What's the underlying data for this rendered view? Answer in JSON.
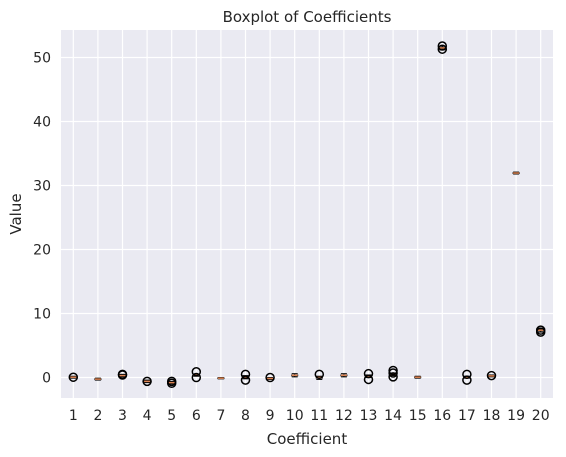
{
  "chart_data": {
    "type": "boxplot",
    "title": "Boxplot of Coefficients",
    "xlabel": "Coefficient",
    "ylabel": "Value",
    "categories": [
      "1",
      "2",
      "3",
      "4",
      "5",
      "6",
      "7",
      "8",
      "9",
      "10",
      "11",
      "12",
      "13",
      "14",
      "15",
      "16",
      "17",
      "18",
      "19",
      "20"
    ],
    "ylim": [
      -3.2,
      54.3
    ],
    "yticks": [
      0,
      10,
      20,
      30,
      40,
      50
    ],
    "grid": true,
    "background_color": "#eaeaf2",
    "grid_color": "#ffffff",
    "median_color": "#dd8452",
    "box_color": "#000000",
    "series": [
      {
        "q1": 0.0,
        "median": 0.05,
        "q3": 0.1,
        "whisker_low": -0.1,
        "whisker_high": 0.2,
        "outliers": [
          0.05
        ]
      },
      {
        "q1": -0.3,
        "median": -0.25,
        "q3": -0.2,
        "whisker_low": -0.4,
        "whisker_high": -0.1,
        "outliers": []
      },
      {
        "q1": 0.2,
        "median": 0.3,
        "q3": 0.4,
        "whisker_low": 0.1,
        "whisker_high": 0.5,
        "outliers": [
          0.5,
          0.4
        ]
      },
      {
        "q1": -0.7,
        "median": -0.6,
        "q3": -0.5,
        "whisker_low": -0.8,
        "whisker_high": -0.4,
        "outliers": [
          -0.6
        ]
      },
      {
        "q1": -0.9,
        "median": -0.8,
        "q3": -0.7,
        "whisker_low": -1.0,
        "whisker_high": -0.6,
        "outliers": [
          -0.9,
          -0.6
        ]
      },
      {
        "q1": 0.3,
        "median": 0.35,
        "q3": 0.4,
        "whisker_low": 0.2,
        "whisker_high": 0.5,
        "outliers": [
          0.9,
          0.0
        ]
      },
      {
        "q1": -0.15,
        "median": -0.1,
        "q3": -0.05,
        "whisker_low": -0.2,
        "whisker_high": 0.0,
        "outliers": []
      },
      {
        "q1": 0.0,
        "median": 0.1,
        "q3": 0.2,
        "whisker_low": -0.2,
        "whisker_high": 0.3,
        "outliers": [
          0.5,
          -0.4
        ]
      },
      {
        "q1": -0.2,
        "median": -0.15,
        "q3": -0.1,
        "whisker_low": -0.3,
        "whisker_high": 0.0,
        "outliers": [
          0.0
        ]
      },
      {
        "q1": 0.3,
        "median": 0.35,
        "q3": 0.4,
        "whisker_low": 0.1,
        "whisker_high": 0.6,
        "outliers": []
      },
      {
        "q1": -0.1,
        "median": 0.0,
        "q3": 0.1,
        "whisker_low": -0.3,
        "whisker_high": 0.2,
        "outliers": [
          0.5
        ]
      },
      {
        "q1": 0.3,
        "median": 0.35,
        "q3": 0.4,
        "whisker_low": 0.1,
        "whisker_high": 0.6,
        "outliers": []
      },
      {
        "q1": 0.1,
        "median": 0.2,
        "q3": 0.3,
        "whisker_low": 0.0,
        "whisker_high": 0.4,
        "outliers": [
          0.6,
          -0.3
        ]
      },
      {
        "q1": 0.4,
        "median": 0.5,
        "q3": 0.6,
        "whisker_low": 0.3,
        "whisker_high": 0.7,
        "outliers": [
          1.1,
          0.7,
          0.1
        ]
      },
      {
        "q1": 0.0,
        "median": 0.05,
        "q3": 0.1,
        "whisker_low": -0.1,
        "whisker_high": 0.2,
        "outliers": []
      },
      {
        "q1": 51.4,
        "median": 51.5,
        "q3": 51.6,
        "whisker_low": 51.2,
        "whisker_high": 51.8,
        "outliers": [
          51.8,
          51.3
        ]
      },
      {
        "q1": 0.0,
        "median": 0.05,
        "q3": 0.1,
        "whisker_low": -0.1,
        "whisker_high": 0.2,
        "outliers": [
          0.5,
          -0.4
        ]
      },
      {
        "q1": 0.2,
        "median": 0.25,
        "q3": 0.3,
        "whisker_low": 0.1,
        "whisker_high": 0.4,
        "outliers": [
          0.3
        ]
      },
      {
        "q1": 31.9,
        "median": 31.95,
        "q3": 32.0,
        "whisker_low": 31.8,
        "whisker_high": 32.1,
        "outliers": []
      },
      {
        "q1": 7.3,
        "median": 7.4,
        "q3": 7.5,
        "whisker_low": 7.1,
        "whisker_high": 7.7,
        "outliers": [
          7.4,
          7.1
        ]
      }
    ]
  }
}
